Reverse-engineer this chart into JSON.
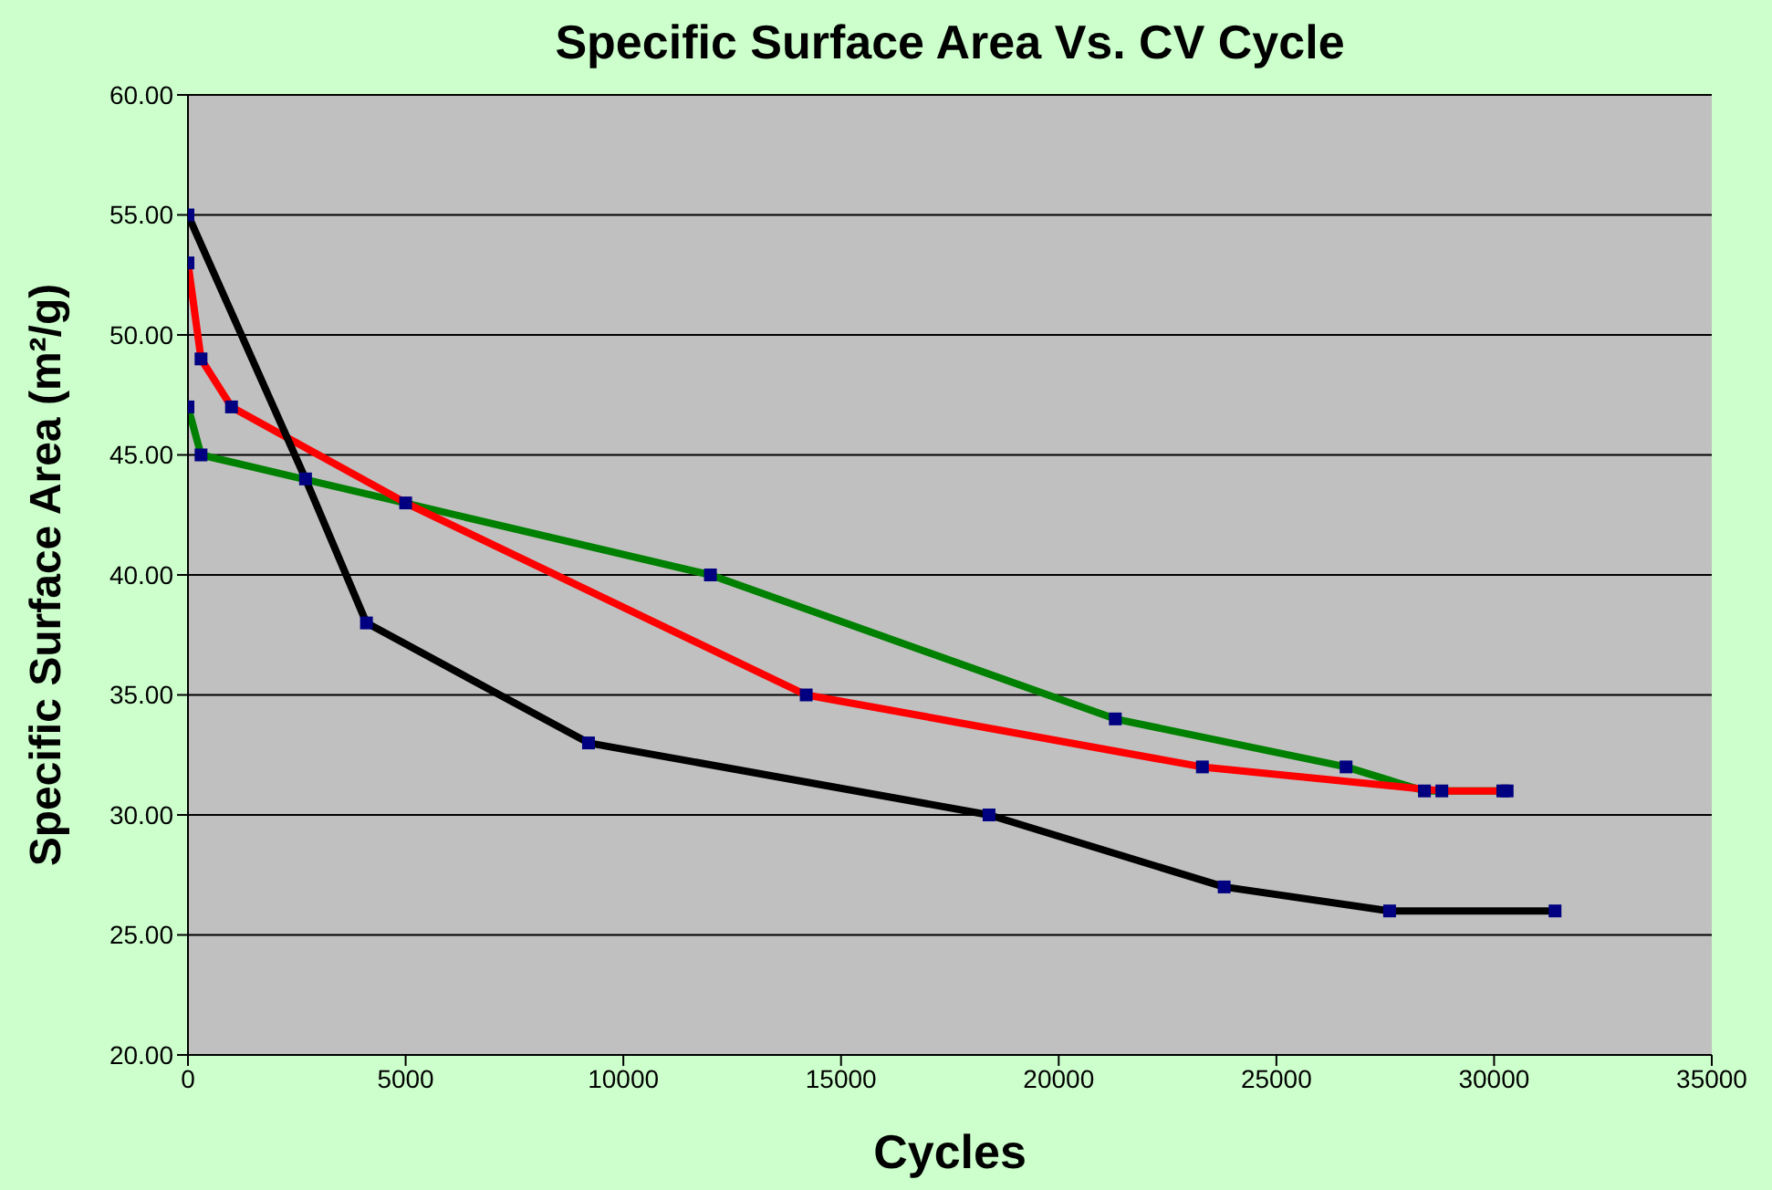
{
  "chart_data": {
    "type": "line",
    "title": "Specific Surface Area Vs. CV Cycle",
    "xlabel": "Cycles",
    "ylabel": "Specific Surface Area (m²/g)",
    "xlim": [
      0,
      35000
    ],
    "xticks": [
      0,
      5000,
      10000,
      15000,
      20000,
      25000,
      30000,
      35000
    ],
    "ylim": [
      20,
      60
    ],
    "yticks": [
      {
        "value": 20,
        "label": "20.00"
      },
      {
        "value": 25,
        "label": "25.00"
      },
      {
        "value": 30,
        "label": "30.00"
      },
      {
        "value": 35,
        "label": "35.00"
      },
      {
        "value": 40,
        "label": "40.00"
      },
      {
        "value": 45,
        "label": "45.00"
      },
      {
        "value": 50,
        "label": "50.00"
      },
      {
        "value": 55,
        "label": "55.00"
      },
      {
        "value": 60,
        "label": "60.00"
      }
    ],
    "grid": "y",
    "marker": "square",
    "line_style": "solid",
    "series": [
      {
        "color": "#008000",
        "x": [
          0,
          300,
          12000,
          21300,
          26600,
          28400,
          30300
        ],
        "values": [
          47,
          45,
          40,
          34,
          32,
          31,
          31
        ]
      },
      {
        "color": "#ff0000",
        "x": [
          0,
          300,
          1000,
          5000,
          14200,
          23300,
          28800,
          30200
        ],
        "values": [
          53,
          49,
          47,
          43,
          35,
          32,
          31,
          31
        ]
      },
      {
        "color": "#000000",
        "x": [
          0,
          2700,
          4100,
          9200,
          18400,
          23800,
          27600,
          31400
        ],
        "values": [
          55,
          44,
          38,
          33,
          30,
          27,
          26,
          26
        ]
      }
    ]
  }
}
